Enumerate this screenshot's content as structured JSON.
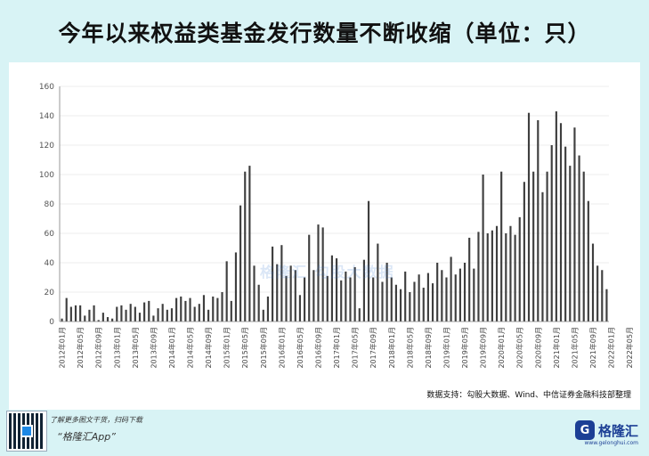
{
  "page": {
    "title": "今年以来权益类基金发行数量不断收缩（单位：只）",
    "source_note": "数据支持：勾股大数据、Wind、中信证券金融科技部整理",
    "watermark": "格隆汇 勾股大数据",
    "footer": {
      "promo_line1": "了解更多图文干货，扫码下载",
      "promo_line2": "“格隆汇App”",
      "brand_name": "格隆汇",
      "brand_sub": "www.gelonghui.com",
      "brand_icon": "G"
    }
  },
  "colors": {
    "background": "#d8f3f5",
    "bar_default": "#3f3f3f",
    "bar_highlight": "#c0141c",
    "axis": "#808080",
    "grid": "#d9d9d9"
  },
  "chart_data": {
    "type": "bar",
    "title": "今年以来权益类基金发行数量不断收缩（单位：只）",
    "xlabel": "",
    "ylabel": "只",
    "ylim": [
      0,
      160
    ],
    "yticks": [
      0,
      20,
      40,
      60,
      80,
      100,
      120,
      140,
      160
    ],
    "grid": true,
    "tick_labels": [
      "2012年01月",
      "2012年05月",
      "2012年09月",
      "2013年01月",
      "2013年05月",
      "2013年09月",
      "2014年01月",
      "2014年05月",
      "2014年09月",
      "2015年01月",
      "2015年05月",
      "2015年09月",
      "2016年01月",
      "2016年05月",
      "2016年09月",
      "2017年01月",
      "2017年05月",
      "2017年09月",
      "2018年01月",
      "2018年05月",
      "2018年09月",
      "2019年01月",
      "2019年05月",
      "2019年09月",
      "2020年01月",
      "2020年05月",
      "2020年09月",
      "2021年01月",
      "2021年05月",
      "2021年09月",
      "2022年01月",
      "2022年05月"
    ],
    "highlight_from_index": 120,
    "values": [
      2,
      16,
      10,
      11,
      11,
      4,
      8,
      11,
      1,
      6,
      3,
      2,
      10,
      11,
      8,
      12,
      10,
      6,
      13,
      14,
      4,
      9,
      12,
      8,
      9,
      16,
      17,
      14,
      16,
      10,
      12,
      18,
      8,
      17,
      16,
      20,
      41,
      14,
      47,
      79,
      102,
      106,
      38,
      25,
      8,
      17,
      51,
      39,
      52,
      31,
      38,
      35,
      18,
      30,
      59,
      35,
      66,
      64,
      31,
      45,
      43,
      28,
      34,
      30,
      37,
      9,
      42,
      82,
      30,
      53,
      27,
      40,
      30,
      25,
      22,
      34,
      20,
      27,
      32,
      23,
      33,
      26,
      40,
      35,
      30,
      44,
      32,
      36,
      40,
      57,
      36,
      61,
      100,
      60,
      62,
      65,
      102,
      60,
      65,
      59,
      71,
      95,
      142,
      102,
      137,
      88,
      102,
      120,
      143,
      135,
      119,
      106,
      132,
      113,
      102,
      82,
      53,
      38,
      35,
      22
    ]
  }
}
